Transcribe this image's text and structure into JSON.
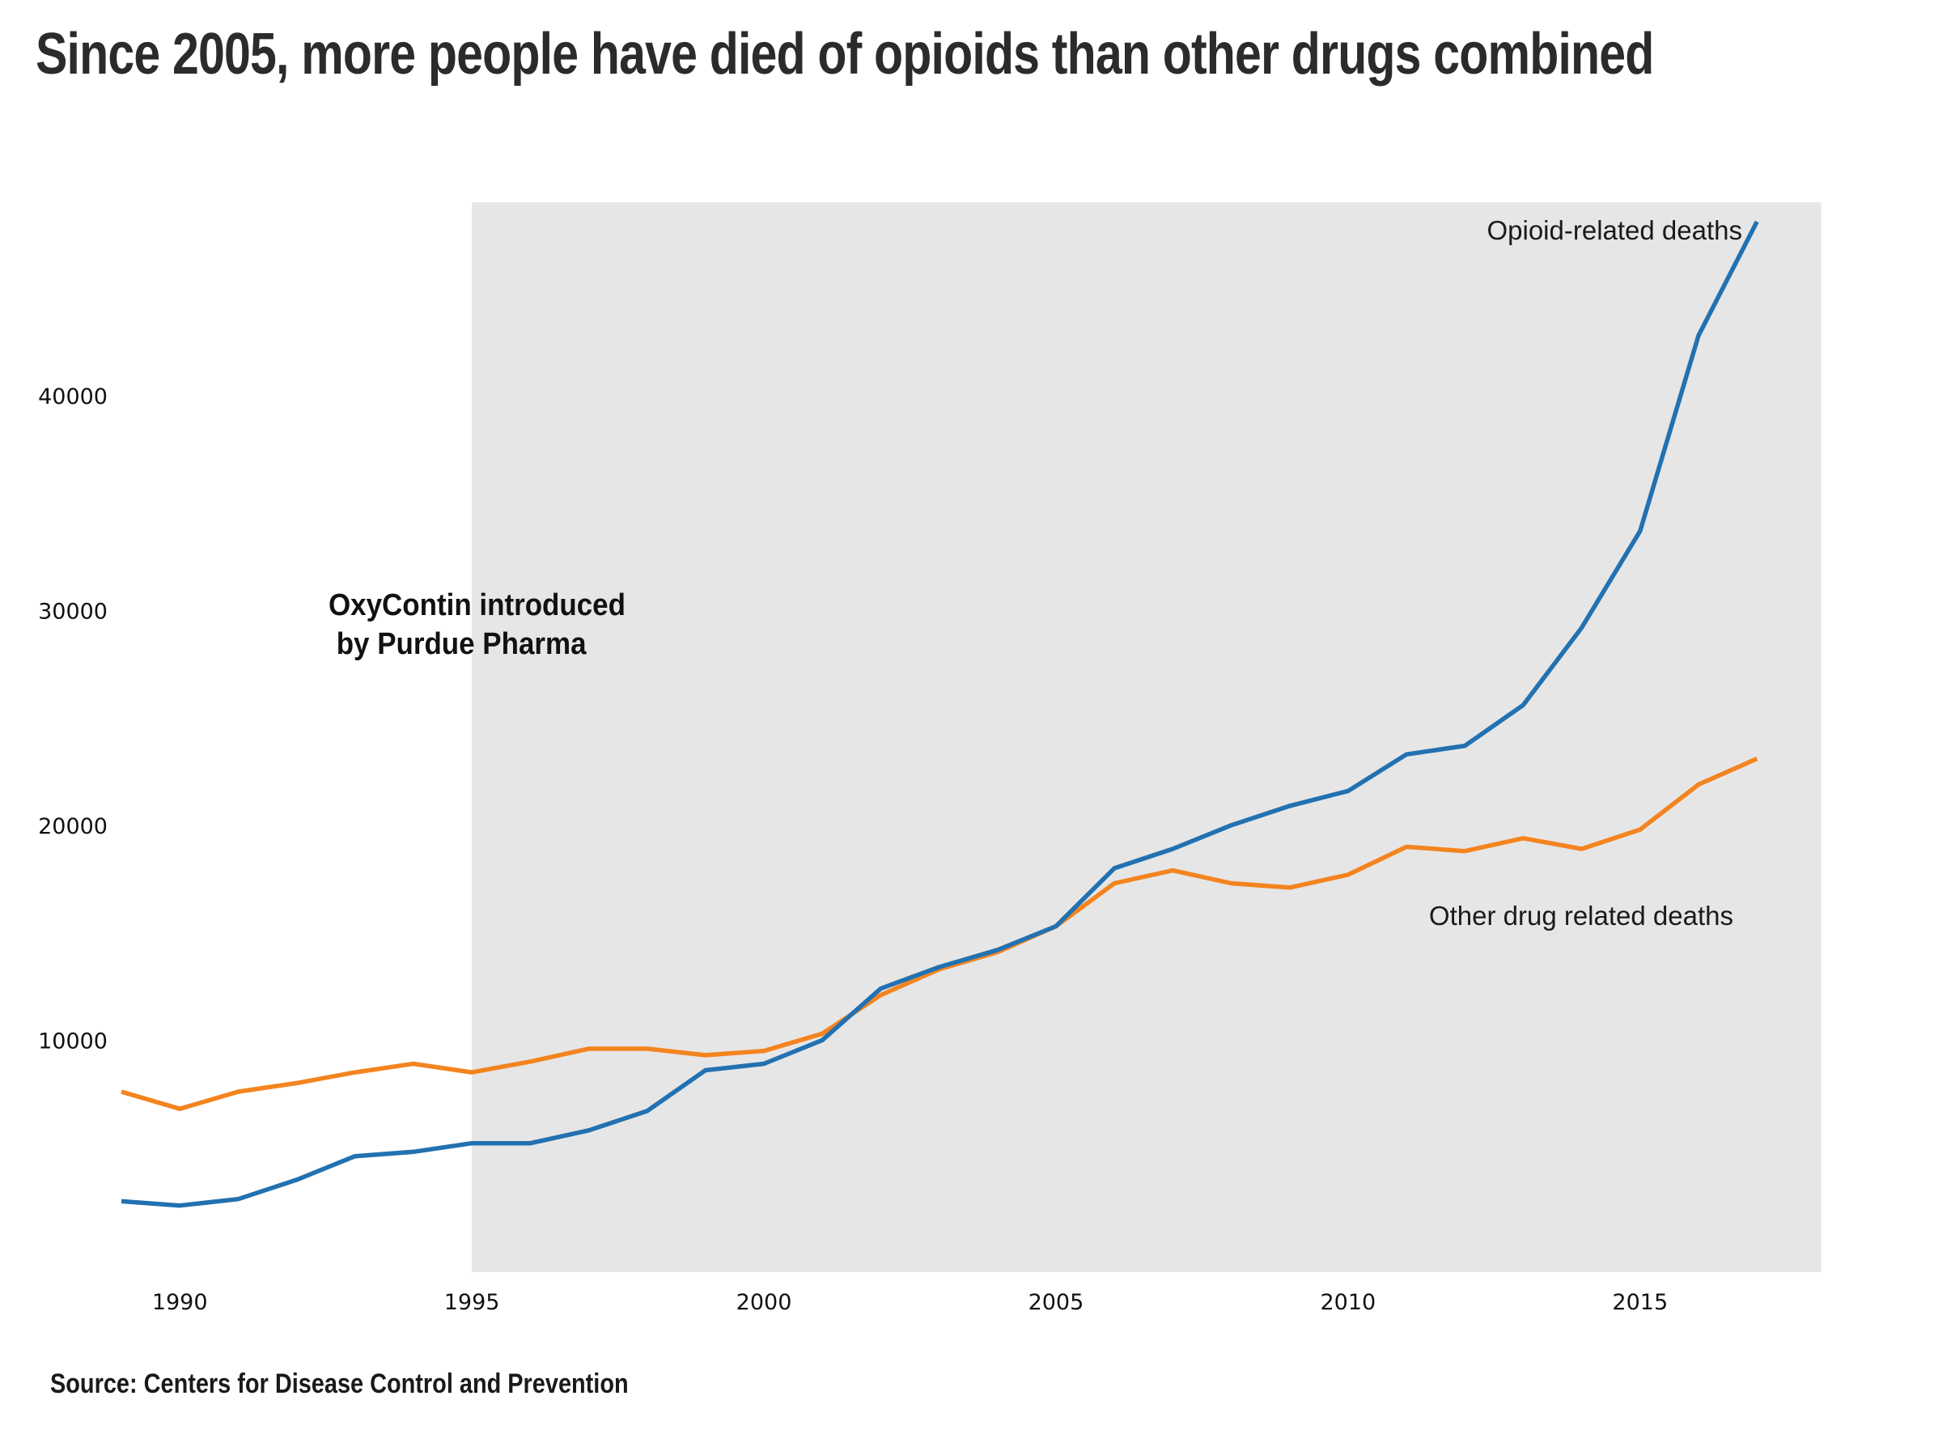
{
  "title": "Since 2005, more people have died of opioids than other drugs combined",
  "source": "Source: Centers for Disease Control and Prevention",
  "chart_data": {
    "type": "line",
    "title": "Since 2005, more people have died of opioids than other drugs combined",
    "xlabel": "",
    "ylabel": "",
    "xlim": [
      1989,
      2018.3
    ],
    "ylim": [
      -800,
      49000
    ],
    "x_ticks": [
      1990,
      1995,
      2000,
      2005,
      2010,
      2015
    ],
    "y_ticks": [
      10000,
      20000,
      30000,
      40000
    ],
    "grid": false,
    "legend": "none (direct labels)",
    "shaded_region": {
      "x_start": 1995,
      "x_end": 2018.1,
      "color": "#e6e6e6"
    },
    "x": [
      1989,
      1990,
      1991,
      1992,
      1993,
      1994,
      1995,
      1996,
      1997,
      1998,
      1999,
      2000,
      2001,
      2002,
      2003,
      2004,
      2005,
      2006,
      2007,
      2008,
      2009,
      2010,
      2011,
      2012,
      2013,
      2014,
      2015,
      2016,
      2017
    ],
    "series": [
      {
        "name": "Opioid-related deaths",
        "color": "#2271b1",
        "values": [
          2500,
          2300,
          2600,
          3500,
          4600,
          4800,
          5200,
          5200,
          5800,
          6700,
          8600,
          8900,
          10000,
          12400,
          13400,
          14200,
          15300,
          18000,
          18900,
          20000,
          20900,
          21600,
          23300,
          23700,
          25600,
          29200,
          33700,
          42800,
          48100
        ]
      },
      {
        "name": "Other drug related deaths",
        "color": "#f4841f",
        "values": [
          7600,
          6800,
          7600,
          8000,
          8500,
          8900,
          8500,
          9000,
          9600,
          9600,
          9300,
          9500,
          10300,
          12100,
          13300,
          14100,
          15300,
          17300,
          17900,
          17300,
          17100,
          17700,
          19000,
          18800,
          19400,
          18900,
          19800,
          21900,
          23100
        ]
      }
    ],
    "annotations": [
      {
        "line1": "OxyContin introduced",
        "line2": " by Purdue Pharma"
      }
    ]
  }
}
